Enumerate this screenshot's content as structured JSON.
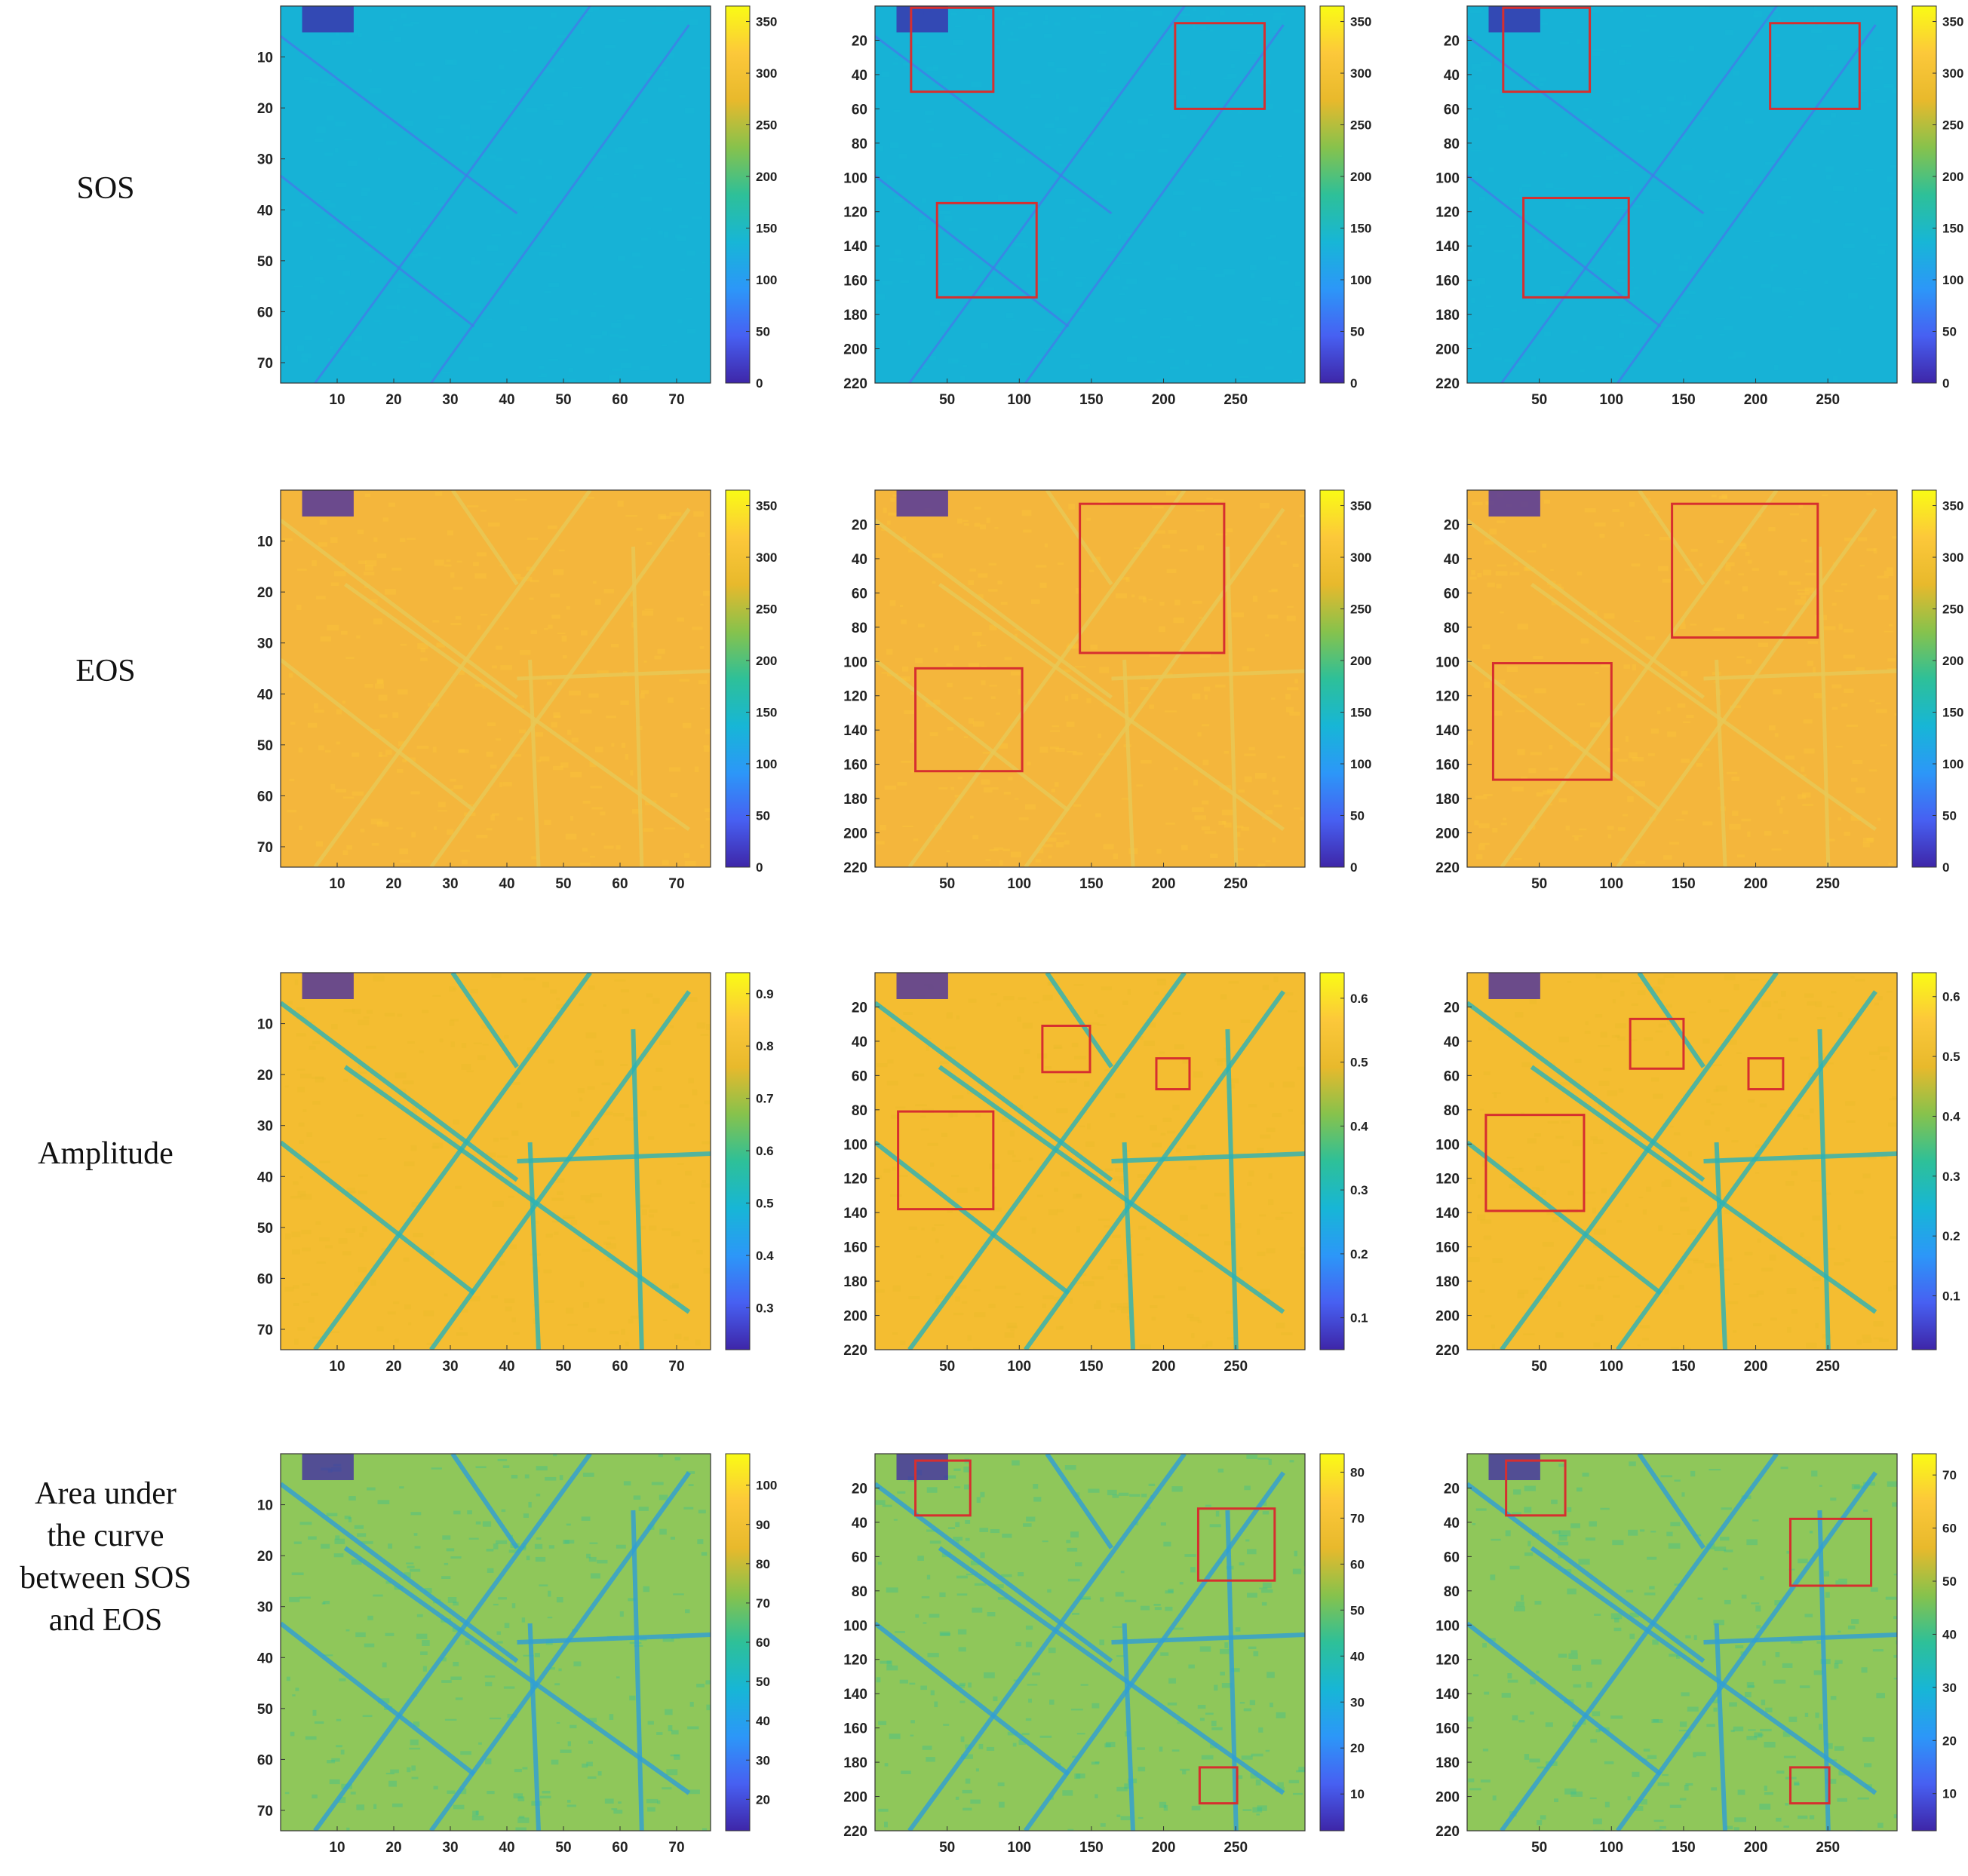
{
  "colormap_stops": [
    "#3e26a8",
    "#4760f2",
    "#2c97f8",
    "#17b6d6",
    "#2ec098",
    "#87c24c",
    "#e8b92c",
    "#fcc83a",
    "#f9fb15"
  ],
  "box_color": "#d62f2f",
  "rows": [
    {
      "label": "SOS",
      "fill": "#17b2d6",
      "line_color": "#3f7fe8",
      "pattern": "sos"
    },
    {
      "label": "EOS",
      "fill": "#f4b63c",
      "line_color": "#e8c957",
      "pattern": "eos"
    },
    {
      "label": "Amplitude",
      "fill": "#f4bd31",
      "line_color": "#2ab3b8",
      "pattern": "field"
    },
    {
      "label": "Area under\nthe curve\nbetween SOS\nand EOS",
      "fill": "#8fc75a",
      "line_color": "#2f9fd7",
      "pattern": "field"
    }
  ],
  "chart_data": [
    {
      "type": "heatmap",
      "row": 0,
      "col": 0,
      "x_ticks": [
        "10",
        "20",
        "30",
        "40",
        "50",
        "60",
        "70"
      ],
      "y_ticks": [
        "10",
        "20",
        "30",
        "40",
        "50",
        "60",
        "70"
      ],
      "xlim": [
        0,
        76
      ],
      "ylim": [
        0,
        74
      ],
      "colorbar_ticks": [
        "0",
        "50",
        "100",
        "150",
        "200",
        "250",
        "300",
        "350"
      ],
      "colorbar_range": [
        0,
        365
      ],
      "boxes": []
    },
    {
      "type": "heatmap",
      "row": 0,
      "col": 1,
      "x_ticks": [
        "50",
        "100",
        "150",
        "200",
        "250"
      ],
      "y_ticks": [
        "20",
        "40",
        "60",
        "80",
        "100",
        "120",
        "140",
        "160",
        "180",
        "200",
        "220"
      ],
      "xlim": [
        0,
        298
      ],
      "ylim": [
        0,
        220
      ],
      "colorbar_ticks": [
        "0",
        "50",
        "100",
        "150",
        "200",
        "250",
        "300",
        "350"
      ],
      "colorbar_range": [
        0,
        365
      ],
      "boxes": [
        [
          25,
          1,
          82,
          50
        ],
        [
          208,
          10,
          270,
          60
        ],
        [
          43,
          115,
          112,
          170
        ]
      ]
    },
    {
      "type": "heatmap",
      "row": 0,
      "col": 2,
      "x_ticks": [
        "50",
        "100",
        "150",
        "200",
        "250"
      ],
      "y_ticks": [
        "20",
        "40",
        "60",
        "80",
        "100",
        "120",
        "140",
        "160",
        "180",
        "200",
        "220"
      ],
      "xlim": [
        0,
        298
      ],
      "ylim": [
        0,
        220
      ],
      "colorbar_ticks": [
        "0",
        "50",
        "100",
        "150",
        "200",
        "250",
        "300",
        "350"
      ],
      "colorbar_range": [
        0,
        365
      ],
      "boxes": [
        [
          25,
          1,
          85,
          50
        ],
        [
          210,
          10,
          272,
          60
        ],
        [
          39,
          112,
          112,
          170
        ]
      ]
    },
    {
      "type": "heatmap",
      "row": 1,
      "col": 0,
      "x_ticks": [
        "10",
        "20",
        "30",
        "40",
        "50",
        "60",
        "70"
      ],
      "y_ticks": [
        "10",
        "20",
        "30",
        "40",
        "50",
        "60",
        "70"
      ],
      "xlim": [
        0,
        76
      ],
      "ylim": [
        0,
        74
      ],
      "colorbar_ticks": [
        "0",
        "50",
        "100",
        "150",
        "200",
        "250",
        "300",
        "350"
      ],
      "colorbar_range": [
        0,
        365
      ],
      "boxes": []
    },
    {
      "type": "heatmap",
      "row": 1,
      "col": 1,
      "x_ticks": [
        "50",
        "100",
        "150",
        "200",
        "250"
      ],
      "y_ticks": [
        "20",
        "40",
        "60",
        "80",
        "100",
        "120",
        "140",
        "160",
        "180",
        "200",
        "220"
      ],
      "xlim": [
        0,
        298
      ],
      "ylim": [
        0,
        220
      ],
      "colorbar_ticks": [
        "0",
        "50",
        "100",
        "150",
        "200",
        "250",
        "300",
        "350"
      ],
      "colorbar_range": [
        0,
        365
      ],
      "boxes": [
        [
          142,
          8,
          242,
          95
        ],
        [
          28,
          104,
          102,
          164
        ]
      ]
    },
    {
      "type": "heatmap",
      "row": 1,
      "col": 2,
      "x_ticks": [
        "50",
        "100",
        "150",
        "200",
        "250"
      ],
      "y_ticks": [
        "20",
        "40",
        "60",
        "80",
        "100",
        "120",
        "140",
        "160",
        "180",
        "200",
        "220"
      ],
      "xlim": [
        0,
        298
      ],
      "ylim": [
        0,
        220
      ],
      "colorbar_ticks": [
        "0",
        "50",
        "100",
        "150",
        "200",
        "250",
        "300",
        "350"
      ],
      "colorbar_range": [
        0,
        365
      ],
      "boxes": [
        [
          142,
          8,
          243,
          86
        ],
        [
          18,
          101,
          100,
          169
        ]
      ]
    },
    {
      "type": "heatmap",
      "row": 2,
      "col": 0,
      "x_ticks": [
        "10",
        "20",
        "30",
        "40",
        "50",
        "60",
        "70"
      ],
      "y_ticks": [
        "10",
        "20",
        "30",
        "40",
        "50",
        "60",
        "70"
      ],
      "xlim": [
        0,
        76
      ],
      "ylim": [
        0,
        74
      ],
      "colorbar_ticks": [
        "0.3",
        "0.4",
        "0.5",
        "0.6",
        "0.7",
        "0.8",
        "0.9"
      ],
      "colorbar_range": [
        0.22,
        0.94
      ],
      "boxes": []
    },
    {
      "type": "heatmap",
      "row": 2,
      "col": 1,
      "x_ticks": [
        "50",
        "100",
        "150",
        "200",
        "250"
      ],
      "y_ticks": [
        "20",
        "40",
        "60",
        "80",
        "100",
        "120",
        "140",
        "160",
        "180",
        "200",
        "220"
      ],
      "xlim": [
        0,
        298
      ],
      "ylim": [
        0,
        220
      ],
      "colorbar_ticks": [
        "0.1",
        "0.2",
        "0.3",
        "0.4",
        "0.5",
        "0.6"
      ],
      "colorbar_range": [
        0.05,
        0.64
      ],
      "boxes": [
        [
          116,
          31,
          149,
          58
        ],
        [
          195,
          50,
          218,
          68
        ],
        [
          16,
          81,
          82,
          138
        ]
      ]
    },
    {
      "type": "heatmap",
      "row": 2,
      "col": 2,
      "x_ticks": [
        "50",
        "100",
        "150",
        "200",
        "250"
      ],
      "y_ticks": [
        "20",
        "40",
        "60",
        "80",
        "100",
        "120",
        "140",
        "160",
        "180",
        "200",
        "220"
      ],
      "xlim": [
        0,
        298
      ],
      "ylim": [
        0,
        220
      ],
      "colorbar_ticks": [
        "0.1",
        "0.2",
        "0.3",
        "0.4",
        "0.5",
        "0.6"
      ],
      "colorbar_range": [
        0.01,
        0.64
      ],
      "boxes": [
        [
          113,
          27,
          150,
          56
        ],
        [
          195,
          50,
          219,
          68
        ],
        [
          13,
          83,
          81,
          139
        ]
      ]
    },
    {
      "type": "heatmap",
      "row": 3,
      "col": 0,
      "x_ticks": [
        "10",
        "20",
        "30",
        "40",
        "50",
        "60",
        "70"
      ],
      "y_ticks": [
        "10",
        "20",
        "30",
        "40",
        "50",
        "60",
        "70"
      ],
      "xlim": [
        0,
        76
      ],
      "ylim": [
        0,
        74
      ],
      "colorbar_ticks": [
        "20",
        "30",
        "40",
        "50",
        "60",
        "70",
        "80",
        "90",
        "100"
      ],
      "colorbar_range": [
        12,
        108
      ],
      "boxes": []
    },
    {
      "type": "heatmap",
      "row": 3,
      "col": 1,
      "x_ticks": [
        "50",
        "100",
        "150",
        "200",
        "250"
      ],
      "y_ticks": [
        "20",
        "40",
        "60",
        "80",
        "100",
        "120",
        "140",
        "160",
        "180",
        "200",
        "220"
      ],
      "xlim": [
        0,
        298
      ],
      "ylim": [
        0,
        220
      ],
      "colorbar_ticks": [
        "10",
        "20",
        "30",
        "40",
        "50",
        "60",
        "70",
        "80"
      ],
      "colorbar_range": [
        2,
        84
      ],
      "boxes": [
        [
          28,
          4,
          66,
          36
        ],
        [
          224,
          32,
          277,
          74
        ],
        [
          225,
          183,
          251,
          204
        ]
      ]
    },
    {
      "type": "heatmap",
      "row": 3,
      "col": 2,
      "x_ticks": [
        "50",
        "100",
        "150",
        "200",
        "250"
      ],
      "y_ticks": [
        "20",
        "40",
        "60",
        "80",
        "100",
        "120",
        "140",
        "160",
        "180",
        "200",
        "220"
      ],
      "xlim": [
        0,
        298
      ],
      "ylim": [
        0,
        220
      ],
      "colorbar_ticks": [
        "10",
        "20",
        "30",
        "40",
        "50",
        "60",
        "70"
      ],
      "colorbar_range": [
        3,
        74
      ],
      "boxes": [
        [
          27,
          4,
          68,
          36
        ],
        [
          224,
          38,
          280,
          77
        ],
        [
          224,
          183,
          251,
          204
        ]
      ]
    }
  ]
}
